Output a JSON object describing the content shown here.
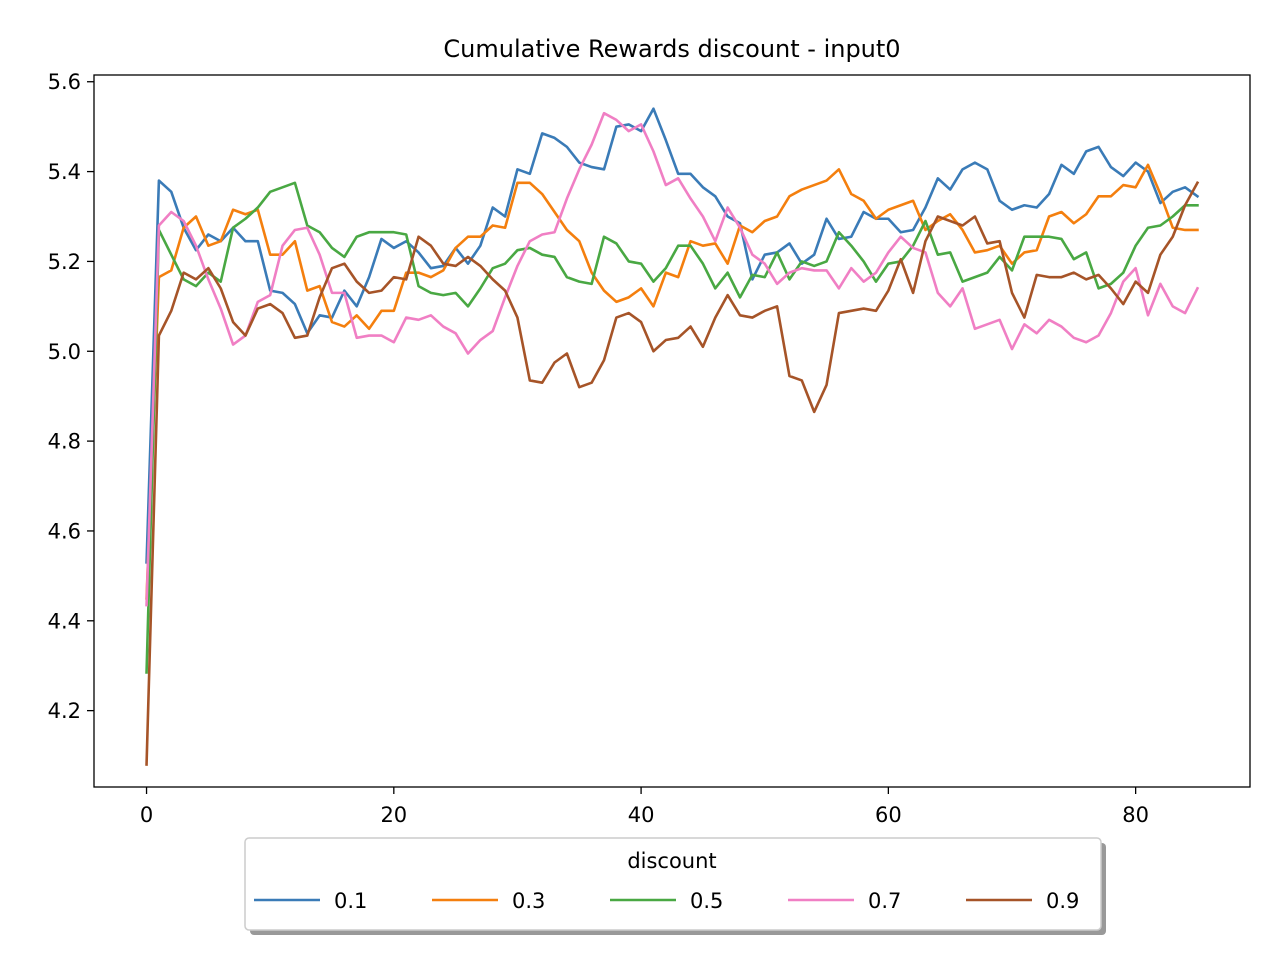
{
  "chart_data": {
    "type": "line",
    "title": "Cumulative Rewards discount - input0",
    "xlabel": "",
    "ylabel": "",
    "xlim": [
      -4.25,
      89.25
    ],
    "ylim": [
      4.03,
      5.615
    ],
    "xticks": [
      0,
      20,
      40,
      60,
      80
    ],
    "xtick_labels": [
      "0",
      "20",
      "40",
      "60",
      "80"
    ],
    "yticks": [
      4.2,
      4.4,
      4.6,
      4.8,
      5.0,
      5.2,
      5.4,
      5.6
    ],
    "ytick_labels": [
      "4.2",
      "4.4",
      "4.6",
      "4.8",
      "5.0",
      "5.2",
      "5.4",
      "5.6"
    ],
    "grid": false,
    "legend": {
      "title": "discount",
      "placement": "bottom-center, outside",
      "ncol": 5
    },
    "x": [
      0,
      1,
      2,
      3,
      4,
      5,
      6,
      7,
      8,
      9,
      10,
      11,
      12,
      13,
      14,
      15,
      16,
      17,
      18,
      19,
      20,
      21,
      22,
      23,
      24,
      25,
      26,
      27,
      28,
      29,
      30,
      31,
      32,
      33,
      34,
      35,
      36,
      37,
      38,
      39,
      40,
      41,
      42,
      43,
      44,
      45,
      46,
      47,
      48,
      49,
      50,
      51,
      52,
      53,
      54,
      55,
      56,
      57,
      58,
      59,
      60,
      61,
      62,
      63,
      64,
      65,
      66,
      67,
      68,
      69,
      70,
      71,
      72,
      73,
      74,
      75,
      76,
      77,
      78,
      79,
      80,
      81,
      82,
      83,
      84,
      85
    ],
    "series": [
      {
        "name": "0.1",
        "color": "#3a7bb7",
        "values": [
          4.53,
          5.38,
          5.355,
          5.275,
          5.225,
          5.26,
          5.245,
          5.275,
          5.245,
          5.245,
          5.135,
          5.13,
          5.105,
          5.04,
          5.08,
          5.075,
          5.135,
          5.1,
          5.165,
          5.25,
          5.23,
          5.245,
          5.22,
          5.185,
          5.19,
          5.23,
          5.195,
          5.235,
          5.32,
          5.3,
          5.405,
          5.395,
          5.485,
          5.475,
          5.455,
          5.42,
          5.41,
          5.405,
          5.5,
          5.505,
          5.49,
          5.54,
          5.47,
          5.395,
          5.395,
          5.365,
          5.345,
          5.3,
          5.285,
          5.16,
          5.215,
          5.22,
          5.24,
          5.195,
          5.215,
          5.295,
          5.25,
          5.255,
          5.31,
          5.295,
          5.295,
          5.265,
          5.27,
          5.32,
          5.385,
          5.36,
          5.405,
          5.42,
          5.405,
          5.335,
          5.315,
          5.325,
          5.32,
          5.35,
          5.415,
          5.395,
          5.445,
          5.455,
          5.41,
          5.39,
          5.42,
          5.4,
          5.33,
          5.355,
          5.365,
          5.345
        ]
      },
      {
        "name": "0.3",
        "color": "#f47f0e",
        "values": [
          4.45,
          5.165,
          5.18,
          5.275,
          5.3,
          5.235,
          5.245,
          5.315,
          5.305,
          5.315,
          5.215,
          5.215,
          5.245,
          5.135,
          5.145,
          5.065,
          5.055,
          5.08,
          5.05,
          5.09,
          5.09,
          5.175,
          5.175,
          5.165,
          5.18,
          5.23,
          5.255,
          5.255,
          5.28,
          5.275,
          5.375,
          5.375,
          5.35,
          5.31,
          5.27,
          5.245,
          5.175,
          5.135,
          5.11,
          5.12,
          5.14,
          5.1,
          5.175,
          5.165,
          5.245,
          5.235,
          5.24,
          5.195,
          5.28,
          5.265,
          5.29,
          5.3,
          5.345,
          5.36,
          5.37,
          5.38,
          5.405,
          5.35,
          5.335,
          5.295,
          5.315,
          5.325,
          5.335,
          5.27,
          5.29,
          5.305,
          5.27,
          5.22,
          5.225,
          5.235,
          5.195,
          5.22,
          5.225,
          5.3,
          5.31,
          5.285,
          5.305,
          5.345,
          5.345,
          5.37,
          5.365,
          5.415,
          5.35,
          5.275,
          5.27,
          5.27
        ]
      },
      {
        "name": "0.5",
        "color": "#49a843",
        "values": [
          4.285,
          5.27,
          5.215,
          5.16,
          5.145,
          5.175,
          5.155,
          5.275,
          5.295,
          5.32,
          5.355,
          5.365,
          5.375,
          5.28,
          5.265,
          5.23,
          5.21,
          5.255,
          5.265,
          5.265,
          5.265,
          5.26,
          5.145,
          5.13,
          5.125,
          5.13,
          5.1,
          5.14,
          5.185,
          5.195,
          5.225,
          5.23,
          5.215,
          5.21,
          5.165,
          5.155,
          5.15,
          5.255,
          5.24,
          5.2,
          5.195,
          5.155,
          5.185,
          5.235,
          5.235,
          5.195,
          5.14,
          5.175,
          5.12,
          5.17,
          5.165,
          5.22,
          5.16,
          5.2,
          5.19,
          5.2,
          5.265,
          5.235,
          5.2,
          5.155,
          5.195,
          5.2,
          5.235,
          5.29,
          5.215,
          5.22,
          5.155,
          5.165,
          5.175,
          5.21,
          5.18,
          5.255,
          5.255,
          5.255,
          5.25,
          5.205,
          5.22,
          5.14,
          5.15,
          5.175,
          5.235,
          5.275,
          5.28,
          5.3,
          5.325,
          5.325
        ]
      },
      {
        "name": "0.7",
        "color": "#f07fc4",
        "values": [
          4.435,
          5.28,
          5.31,
          5.29,
          5.235,
          5.16,
          5.095,
          5.015,
          5.035,
          5.11,
          5.125,
          5.235,
          5.27,
          5.275,
          5.215,
          5.13,
          5.13,
          5.03,
          5.035,
          5.035,
          5.02,
          5.075,
          5.07,
          5.08,
          5.055,
          5.04,
          4.995,
          5.025,
          5.045,
          5.12,
          5.19,
          5.245,
          5.26,
          5.265,
          5.34,
          5.405,
          5.46,
          5.53,
          5.515,
          5.49,
          5.505,
          5.445,
          5.37,
          5.385,
          5.34,
          5.3,
          5.245,
          5.32,
          5.275,
          5.215,
          5.195,
          5.15,
          5.175,
          5.185,
          5.18,
          5.18,
          5.14,
          5.185,
          5.155,
          5.175,
          5.22,
          5.255,
          5.23,
          5.22,
          5.13,
          5.1,
          5.14,
          5.05,
          5.06,
          5.07,
          5.005,
          5.06,
          5.04,
          5.07,
          5.055,
          5.03,
          5.02,
          5.035,
          5.085,
          5.155,
          5.185,
          5.08,
          5.15,
          5.1,
          5.085,
          5.14
        ]
      },
      {
        "name": "0.9",
        "color": "#a65428",
        "values": [
          4.08,
          5.035,
          5.09,
          5.175,
          5.16,
          5.185,
          5.14,
          5.065,
          5.035,
          5.095,
          5.105,
          5.085,
          5.03,
          5.035,
          5.12,
          5.185,
          5.195,
          5.155,
          5.13,
          5.135,
          5.165,
          5.16,
          5.255,
          5.235,
          5.195,
          5.19,
          5.21,
          5.19,
          5.16,
          5.135,
          5.075,
          4.935,
          4.93,
          4.975,
          4.995,
          4.92,
          4.93,
          4.98,
          5.075,
          5.085,
          5.065,
          5.0,
          5.025,
          5.03,
          5.055,
          5.01,
          5.075,
          5.125,
          5.08,
          5.075,
          5.09,
          5.1,
          4.945,
          4.935,
          4.865,
          4.925,
          5.085,
          5.09,
          5.095,
          5.09,
          5.135,
          5.205,
          5.13,
          5.245,
          5.3,
          5.29,
          5.28,
          5.3,
          5.24,
          5.245,
          5.13,
          5.075,
          5.17,
          5.165,
          5.165,
          5.175,
          5.16,
          5.17,
          5.14,
          5.105,
          5.155,
          5.13,
          5.215,
          5.255,
          5.325,
          5.375
        ]
      }
    ]
  }
}
